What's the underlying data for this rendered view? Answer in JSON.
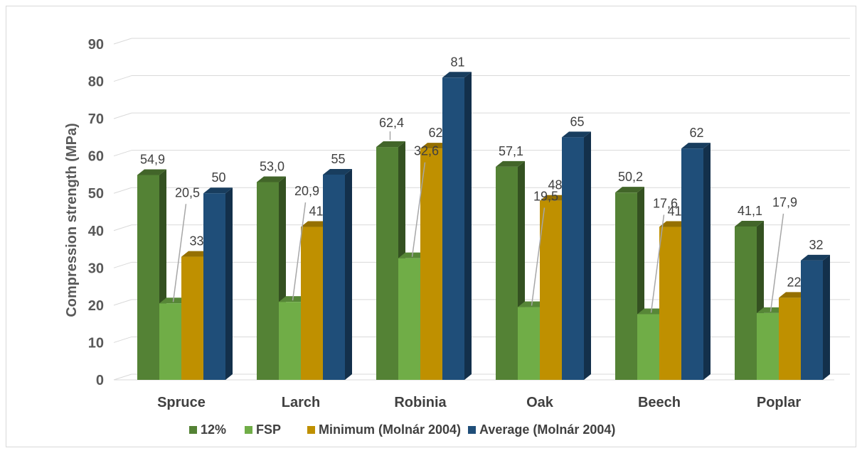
{
  "chart_data": {
    "type": "bar",
    "title": "",
    "ylabel": "Compression strength (MPa)",
    "xlabel": "",
    "ylim": [
      0,
      90
    ],
    "yticks": [
      "0",
      "10",
      "20",
      "30",
      "40",
      "50",
      "60",
      "70",
      "80",
      "90"
    ],
    "grid": true,
    "legend_position": "bottom",
    "categories": [
      "Spruce",
      "Larch",
      "Robinia",
      "Oak",
      "Beech",
      "Poplar"
    ],
    "series": [
      {
        "name": "12%",
        "color": "#548235",
        "values": [
          54.9,
          53.0,
          62.4,
          57.1,
          50.2,
          41.1
        ],
        "labels": [
          "54,9",
          "53,0",
          "62,4",
          "57,1",
          "50,2",
          "41,1"
        ]
      },
      {
        "name": "FSP",
        "color": "#70ad47",
        "values": [
          20.5,
          20.9,
          32.6,
          19.5,
          17.6,
          17.9
        ],
        "labels": [
          "20,5",
          "20,9",
          "32,6",
          "19,5",
          "17,6",
          "17,9"
        ]
      },
      {
        "name": "Minimum (Molnár 2004)",
        "color": "#bf9000",
        "values": [
          33,
          41,
          62,
          48,
          41,
          22
        ],
        "labels": [
          "33",
          "41",
          "62",
          "48",
          "41",
          "22"
        ]
      },
      {
        "name": "Average (Molnár 2004)",
        "color": "#1f4e79",
        "values": [
          50,
          55,
          81,
          65,
          62,
          32
        ],
        "labels": [
          "50",
          "55",
          "81",
          "65",
          "62",
          "32"
        ]
      }
    ]
  }
}
